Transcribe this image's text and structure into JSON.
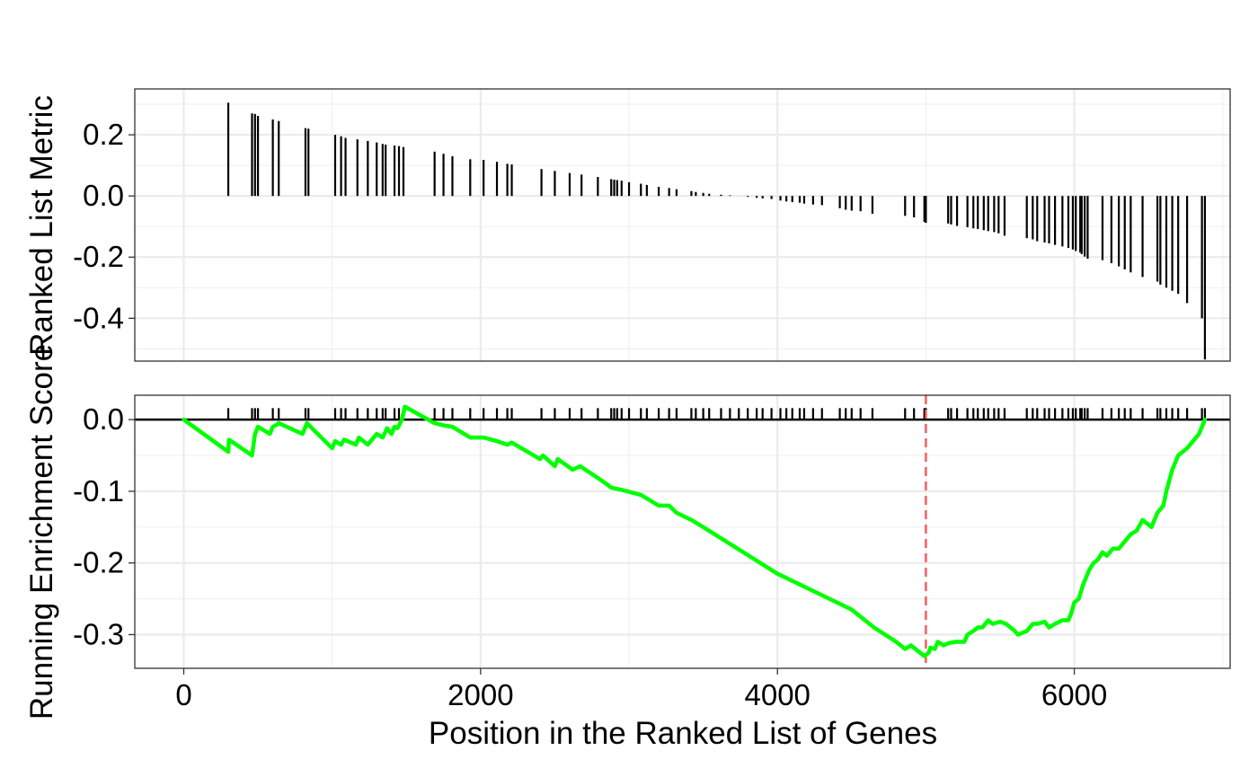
{
  "chart_data": [
    {
      "panel": "ranked-list-metric",
      "type": "bar",
      "ylabel": "Ranked List Metric",
      "xlim": [
        -330,
        7050
      ],
      "ylim": [
        -0.54,
        0.35
      ],
      "x_ticks": [
        0,
        2000,
        4000,
        6000
      ],
      "y_ticks": [
        0.2,
        0.0,
        -0.2,
        -0.4
      ],
      "y_tick_labels": [
        "0.2",
        "0.0",
        "-0.2",
        "-0.4"
      ],
      "grid": true,
      "bar_color": "#000000",
      "points": [
        [
          300,
          0.305
        ],
        [
          460,
          0.27
        ],
        [
          480,
          0.268
        ],
        [
          500,
          0.262
        ],
        [
          600,
          0.25
        ],
        [
          640,
          0.245
        ],
        [
          820,
          0.222
        ],
        [
          840,
          0.22
        ],
        [
          1020,
          0.2
        ],
        [
          1060,
          0.195
        ],
        [
          1090,
          0.19
        ],
        [
          1170,
          0.185
        ],
        [
          1240,
          0.18
        ],
        [
          1300,
          0.175
        ],
        [
          1340,
          0.17
        ],
        [
          1360,
          0.168
        ],
        [
          1420,
          0.165
        ],
        [
          1450,
          0.163
        ],
        [
          1480,
          0.16
        ],
        [
          1690,
          0.145
        ],
        [
          1750,
          0.138
        ],
        [
          1810,
          0.13
        ],
        [
          1930,
          0.12
        ],
        [
          2020,
          0.118
        ],
        [
          2110,
          0.112
        ],
        [
          2180,
          0.105
        ],
        [
          2210,
          0.103
        ],
        [
          2410,
          0.088
        ],
        [
          2500,
          0.082
        ],
        [
          2600,
          0.075
        ],
        [
          2680,
          0.07
        ],
        [
          2790,
          0.062
        ],
        [
          2880,
          0.055
        ],
        [
          2900,
          0.053
        ],
        [
          2920,
          0.052
        ],
        [
          2950,
          0.05
        ],
        [
          3000,
          0.045
        ],
        [
          3080,
          0.04
        ],
        [
          3120,
          0.036
        ],
        [
          3200,
          0.03
        ],
        [
          3270,
          0.026
        ],
        [
          3320,
          0.022
        ],
        [
          3420,
          0.016
        ],
        [
          3450,
          0.013
        ],
        [
          3500,
          0.01
        ],
        [
          3540,
          0.007
        ],
        [
          3620,
          0.004
        ],
        [
          3680,
          0.002
        ],
        [
          3740,
          0.0
        ],
        [
          3800,
          -0.003
        ],
        [
          3860,
          -0.006
        ],
        [
          3900,
          -0.008
        ],
        [
          3960,
          -0.01
        ],
        [
          4020,
          -0.015
        ],
        [
          4060,
          -0.018
        ],
        [
          4100,
          -0.02
        ],
        [
          4150,
          -0.022
        ],
        [
          4180,
          -0.025
        ],
        [
          4240,
          -0.028
        ],
        [
          4300,
          -0.03
        ],
        [
          4420,
          -0.04
        ],
        [
          4460,
          -0.045
        ],
        [
          4500,
          -0.048
        ],
        [
          4560,
          -0.05
        ],
        [
          4640,
          -0.058
        ],
        [
          4860,
          -0.065
        ],
        [
          4920,
          -0.07
        ],
        [
          4990,
          -0.085
        ],
        [
          5000,
          -0.088
        ],
        [
          5150,
          -0.09
        ],
        [
          5170,
          -0.093
        ],
        [
          5210,
          -0.098
        ],
        [
          5280,
          -0.102
        ],
        [
          5320,
          -0.106
        ],
        [
          5350,
          -0.108
        ],
        [
          5390,
          -0.112
        ],
        [
          5420,
          -0.115
        ],
        [
          5460,
          -0.118
        ],
        [
          5490,
          -0.122
        ],
        [
          5530,
          -0.13
        ],
        [
          5680,
          -0.138
        ],
        [
          5720,
          -0.142
        ],
        [
          5750,
          -0.148
        ],
        [
          5800,
          -0.152
        ],
        [
          5830,
          -0.155
        ],
        [
          5870,
          -0.16
        ],
        [
          5920,
          -0.165
        ],
        [
          5960,
          -0.17
        ],
        [
          5990,
          -0.175
        ],
        [
          6010,
          -0.18
        ],
        [
          6040,
          -0.185
        ],
        [
          6050,
          -0.19
        ],
        [
          6070,
          -0.198
        ],
        [
          6090,
          -0.205
        ],
        [
          6190,
          -0.21
        ],
        [
          6250,
          -0.22
        ],
        [
          6300,
          -0.23
        ],
        [
          6340,
          -0.24
        ],
        [
          6380,
          -0.25
        ],
        [
          6460,
          -0.265
        ],
        [
          6560,
          -0.28
        ],
        [
          6580,
          -0.29
        ],
        [
          6620,
          -0.3
        ],
        [
          6660,
          -0.31
        ],
        [
          6700,
          -0.32
        ],
        [
          6760,
          -0.35
        ],
        [
          6860,
          -0.4
        ],
        [
          6880,
          -0.535
        ]
      ]
    },
    {
      "panel": "running-enrichment-score",
      "type": "line",
      "ylabel": "Running Enrichment Score",
      "xlabel": "Position in the Ranked List of Genes",
      "xlim": [
        -330,
        7050
      ],
      "ylim": [
        -0.347,
        0.034
      ],
      "x_ticks": [
        0,
        2000,
        4000,
        6000
      ],
      "x_tick_labels": [
        "0",
        "2000",
        "4000",
        "6000"
      ],
      "y_ticks": [
        0.0,
        -0.1,
        -0.2,
        -0.3
      ],
      "y_tick_labels": [
        "0.0",
        "-0.1",
        "-0.2",
        "-0.3"
      ],
      "grid": true,
      "line_color": "#00ff00",
      "zero_line_color": "#000000",
      "peak_marker": {
        "x": 5000,
        "color": "#ff5555",
        "style": "dashed"
      },
      "hit_tick_range": [
        0.0,
        0.016
      ],
      "series": [
        {
          "values": [
            [
              0,
              0.0
            ],
            [
              300,
              -0.045
            ],
            [
              305,
              -0.028
            ],
            [
              460,
              -0.05
            ],
            [
              470,
              -0.035
            ],
            [
              480,
              -0.02
            ],
            [
              500,
              -0.01
            ],
            [
              580,
              -0.02
            ],
            [
              600,
              -0.01
            ],
            [
              620,
              -0.008
            ],
            [
              640,
              -0.005
            ],
            [
              800,
              -0.02
            ],
            [
              830,
              -0.005
            ],
            [
              1000,
              -0.04
            ],
            [
              1020,
              -0.03
            ],
            [
              1060,
              -0.035
            ],
            [
              1080,
              -0.028
            ],
            [
              1160,
              -0.035
            ],
            [
              1180,
              -0.025
            ],
            [
              1240,
              -0.035
            ],
            [
              1300,
              -0.02
            ],
            [
              1340,
              -0.025
            ],
            [
              1370,
              -0.012
            ],
            [
              1400,
              -0.02
            ],
            [
              1420,
              -0.01
            ],
            [
              1440,
              -0.012
            ],
            [
              1470,
              0.0
            ],
            [
              1490,
              0.018
            ],
            [
              1690,
              -0.005
            ],
            [
              1750,
              -0.008
            ],
            [
              1810,
              -0.01
            ],
            [
              1930,
              -0.025
            ],
            [
              2020,
              -0.025
            ],
            [
              2110,
              -0.03
            ],
            [
              2180,
              -0.035
            ],
            [
              2210,
              -0.032
            ],
            [
              2400,
              -0.055
            ],
            [
              2420,
              -0.05
            ],
            [
              2500,
              -0.065
            ],
            [
              2520,
              -0.055
            ],
            [
              2620,
              -0.07
            ],
            [
              2670,
              -0.065
            ],
            [
              2780,
              -0.08
            ],
            [
              2850,
              -0.09
            ],
            [
              2880,
              -0.095
            ],
            [
              2950,
              -0.098
            ],
            [
              3080,
              -0.105
            ],
            [
              3120,
              -0.11
            ],
            [
              3200,
              -0.12
            ],
            [
              3270,
              -0.12
            ],
            [
              3320,
              -0.13
            ],
            [
              3420,
              -0.14
            ],
            [
              3500,
              -0.15
            ],
            [
              4000,
              -0.215
            ],
            [
              4200,
              -0.235
            ],
            [
              4400,
              -0.255
            ],
            [
              4500,
              -0.265
            ],
            [
              4650,
              -0.29
            ],
            [
              4800,
              -0.31
            ],
            [
              4860,
              -0.32
            ],
            [
              4900,
              -0.315
            ],
            [
              4990,
              -0.33
            ],
            [
              5020,
              -0.325
            ],
            [
              5030,
              -0.318
            ],
            [
              5060,
              -0.32
            ],
            [
              5080,
              -0.31
            ],
            [
              5120,
              -0.315
            ],
            [
              5150,
              -0.312
            ],
            [
              5200,
              -0.31
            ],
            [
              5260,
              -0.31
            ],
            [
              5280,
              -0.3
            ],
            [
              5320,
              -0.295
            ],
            [
              5350,
              -0.29
            ],
            [
              5380,
              -0.29
            ],
            [
              5400,
              -0.285
            ],
            [
              5420,
              -0.28
            ],
            [
              5450,
              -0.285
            ],
            [
              5500,
              -0.282
            ],
            [
              5540,
              -0.285
            ],
            [
              5600,
              -0.295
            ],
            [
              5620,
              -0.3
            ],
            [
              5680,
              -0.295
            ],
            [
              5700,
              -0.29
            ],
            [
              5720,
              -0.285
            ],
            [
              5750,
              -0.285
            ],
            [
              5800,
              -0.282
            ],
            [
              5830,
              -0.29
            ],
            [
              5870,
              -0.285
            ],
            [
              5920,
              -0.28
            ],
            [
              5960,
              -0.28
            ],
            [
              5980,
              -0.27
            ],
            [
              6000,
              -0.255
            ],
            [
              6030,
              -0.25
            ],
            [
              6060,
              -0.23
            ],
            [
              6100,
              -0.21
            ],
            [
              6130,
              -0.2
            ],
            [
              6160,
              -0.195
            ],
            [
              6190,
              -0.185
            ],
            [
              6220,
              -0.19
            ],
            [
              6260,
              -0.18
            ],
            [
              6300,
              -0.18
            ],
            [
              6340,
              -0.17
            ],
            [
              6380,
              -0.16
            ],
            [
              6420,
              -0.155
            ],
            [
              6460,
              -0.14
            ],
            [
              6520,
              -0.15
            ],
            [
              6560,
              -0.13
            ],
            [
              6600,
              -0.12
            ],
            [
              6620,
              -0.1
            ],
            [
              6660,
              -0.07
            ],
            [
              6700,
              -0.05
            ],
            [
              6760,
              -0.04
            ],
            [
              6800,
              -0.03
            ],
            [
              6840,
              -0.02
            ],
            [
              6880,
              0.0
            ]
          ]
        }
      ]
    }
  ]
}
